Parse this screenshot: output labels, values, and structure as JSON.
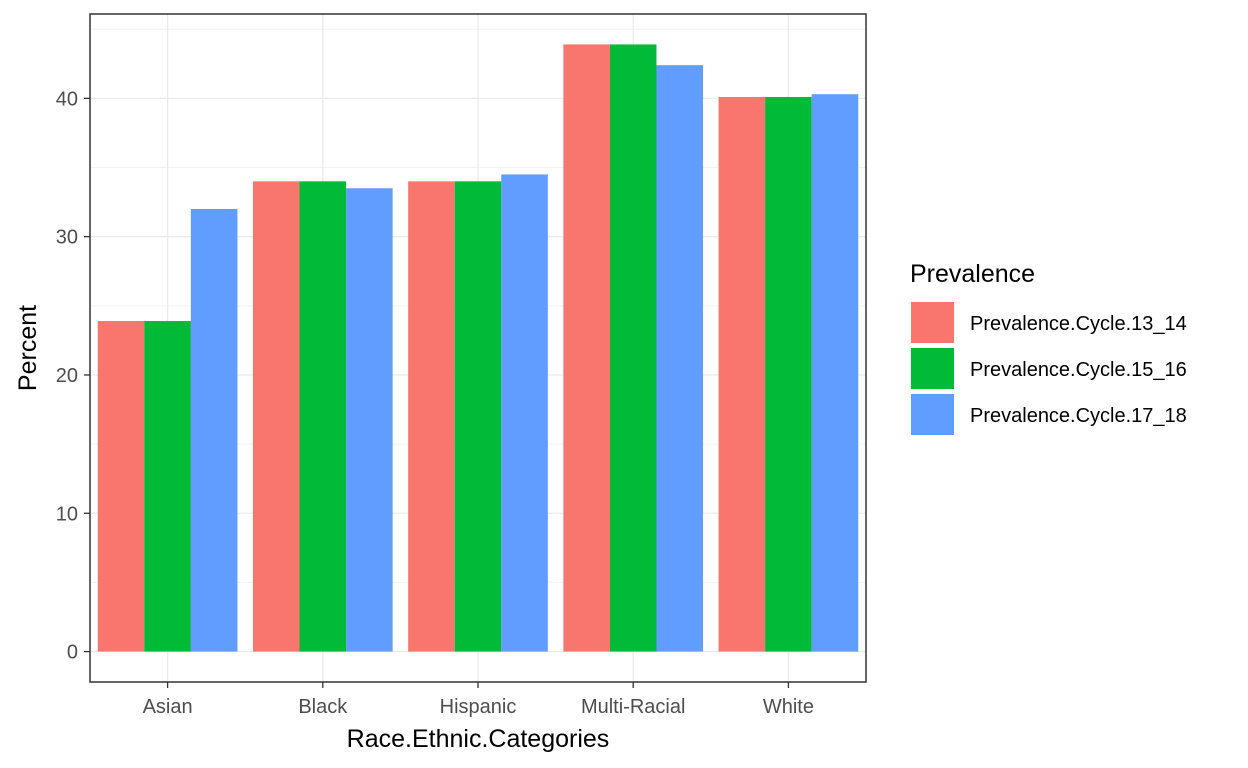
{
  "chart_data": {
    "type": "bar",
    "categories": [
      "Asian",
      "Black",
      "Hispanic",
      "Multi-Racial",
      "White"
    ],
    "series": [
      {
        "name": "Prevalence.Cycle.13_14",
        "values": [
          23.9,
          34.0,
          34.0,
          43.9,
          40.1
        ],
        "color": "#F8766D"
      },
      {
        "name": "Prevalence.Cycle.15_16",
        "values": [
          23.9,
          34.0,
          34.0,
          43.9,
          40.1
        ],
        "color": "#00BA38"
      },
      {
        "name": "Prevalence.Cycle.17_18",
        "values": [
          32.0,
          33.5,
          34.5,
          42.4,
          40.3
        ],
        "color": "#619CFF"
      }
    ],
    "xlabel": "Race.Ethnic.Categories",
    "ylabel": "Percent",
    "ylim": [
      -2.2,
      46.1
    ],
    "yticks": [
      0,
      10,
      20,
      30,
      40
    ],
    "legend_title": "Prevalence",
    "legend_position": "right",
    "grid": true
  }
}
